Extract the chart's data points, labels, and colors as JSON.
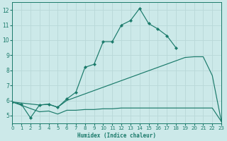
{
  "xlabel": "Humidex (Indice chaleur)",
  "xlim": [
    0,
    23
  ],
  "ylim": [
    4.5,
    12.5
  ],
  "xticks": [
    0,
    1,
    2,
    3,
    4,
    5,
    6,
    7,
    8,
    9,
    10,
    11,
    12,
    13,
    14,
    15,
    16,
    17,
    18,
    19,
    20,
    21,
    22,
    23
  ],
  "yticks": [
    5,
    6,
    7,
    8,
    9,
    10,
    11,
    12
  ],
  "bg_color": "#cce9e9",
  "grid_color": "#b8d8d8",
  "line_color": "#1a7a6a",
  "line1_x": [
    0,
    1,
    2,
    3,
    4,
    5,
    6,
    7,
    8,
    9,
    10,
    11,
    12,
    13,
    14,
    15,
    16,
    17,
    18
  ],
  "line1_y": [
    5.9,
    5.75,
    4.85,
    5.7,
    5.75,
    5.55,
    6.1,
    6.55,
    8.2,
    8.4,
    9.9,
    9.9,
    11.0,
    11.3,
    12.1,
    11.1,
    10.75,
    10.3,
    9.5
  ],
  "line2_x": [
    0,
    3,
    4,
    5,
    6,
    19,
    20,
    21,
    22,
    23
  ],
  "line2_y": [
    5.9,
    5.7,
    5.75,
    5.55,
    6.0,
    8.85,
    8.9,
    8.9,
    7.65,
    4.6
  ],
  "line3_x": [
    0,
    3,
    4,
    5,
    6,
    7,
    8,
    9,
    10,
    11,
    12,
    13,
    14,
    15,
    16,
    17,
    18,
    19,
    20,
    21,
    22,
    23
  ],
  "line3_y": [
    5.9,
    5.25,
    5.3,
    5.1,
    5.35,
    5.35,
    5.4,
    5.4,
    5.45,
    5.45,
    5.5,
    5.5,
    5.5,
    5.5,
    5.5,
    5.5,
    5.5,
    5.5,
    5.5,
    5.5,
    5.5,
    4.6
  ]
}
